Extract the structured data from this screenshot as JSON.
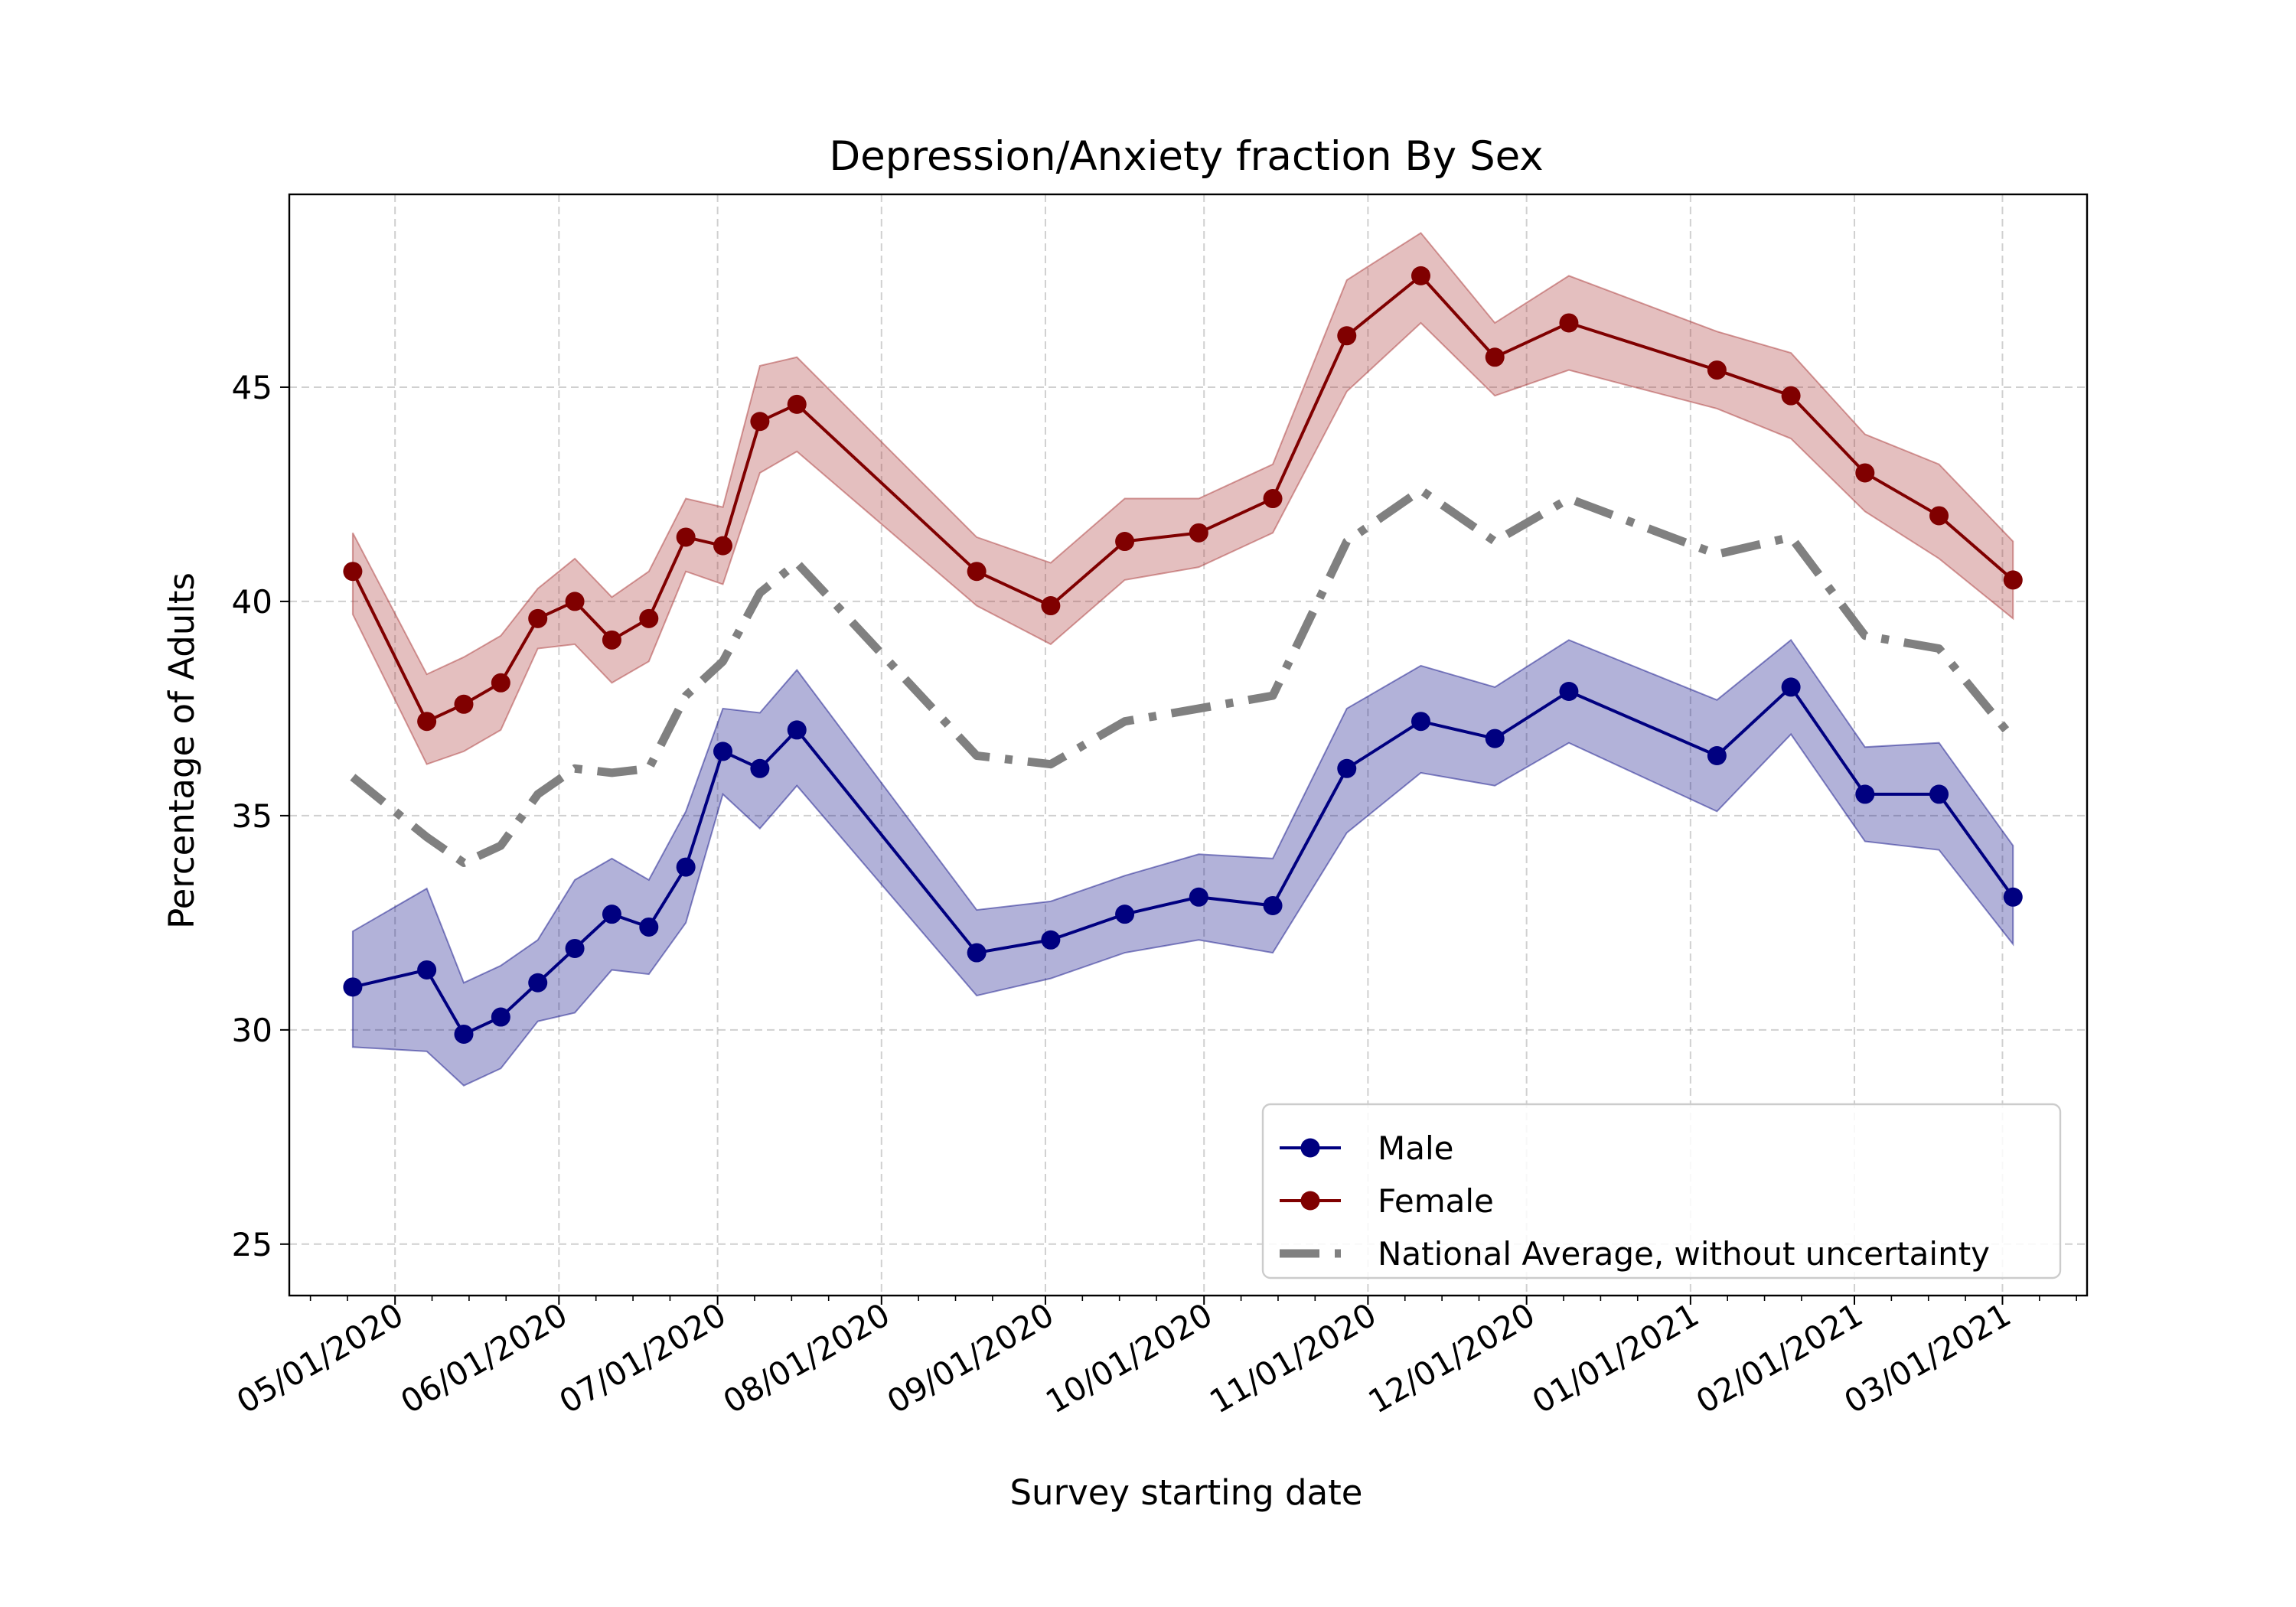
{
  "chart_data": {
    "type": "line",
    "title": "Depression/Anxiety fraction By Sex",
    "xlabel": "Survey starting date",
    "ylabel": "Percentage of Adults",
    "x_type": "date",
    "xlim": [
      "2020-04-11",
      "2021-03-17"
    ],
    "ylim": [
      23.8,
      49.5
    ],
    "yticks": [
      25,
      30,
      35,
      40,
      45
    ],
    "xticks": [
      {
        "date": "2020-05-01",
        "label": "05/01/2020"
      },
      {
        "date": "2020-06-01",
        "label": "06/01/2020"
      },
      {
        "date": "2020-07-01",
        "label": "07/01/2020"
      },
      {
        "date": "2020-08-01",
        "label": "08/01/2020"
      },
      {
        "date": "2020-09-01",
        "label": "09/01/2020"
      },
      {
        "date": "2020-10-01",
        "label": "10/01/2020"
      },
      {
        "date": "2020-11-01",
        "label": "11/01/2020"
      },
      {
        "date": "2020-12-01",
        "label": "12/01/2020"
      },
      {
        "date": "2021-01-01",
        "label": "01/01/2021"
      },
      {
        "date": "2021-02-01",
        "label": "02/01/2021"
      },
      {
        "date": "2021-03-01",
        "label": "03/01/2021"
      }
    ],
    "minor_tick_days": [
      1,
      8,
      15,
      22
    ],
    "grid": true,
    "legend_position": "bottom-right",
    "x": [
      "2020-04-23",
      "2020-05-07",
      "2020-05-14",
      "2020-05-21",
      "2020-05-28",
      "2020-06-04",
      "2020-06-11",
      "2020-06-18",
      "2020-06-25",
      "2020-07-02",
      "2020-07-09",
      "2020-07-16",
      "2020-07-21",
      "2020-08-19",
      "2020-09-02",
      "2020-09-16",
      "2020-09-30",
      "2020-10-14",
      "2020-10-28",
      "2020-11-11",
      "2020-11-25",
      "2020-12-09",
      "2021-01-06",
      "2021-01-20",
      "2021-02-03",
      "2021-02-17",
      "2021-03-03"
    ],
    "series": [
      {
        "name": "Male",
        "color": "#000080",
        "band_color": "#000080",
        "values": [
          31.0,
          31.4,
          29.9,
          30.3,
          31.1,
          31.9,
          32.7,
          32.4,
          33.8,
          36.5,
          36.1,
          37.0,
          null,
          31.8,
          32.1,
          32.7,
          33.1,
          32.9,
          36.1,
          37.2,
          36.8,
          37.9,
          36.4,
          38.0,
          35.5,
          35.5,
          33.1
        ],
        "x_index_override": [
          0,
          1,
          2,
          3,
          4,
          5,
          6,
          7,
          8,
          9,
          10,
          11,
          null,
          13,
          14,
          15,
          16,
          17,
          18,
          19,
          20,
          21,
          22,
          23,
          24,
          25,
          26
        ],
        "lower": [
          29.6,
          29.5,
          28.7,
          29.1,
          30.2,
          30.4,
          31.4,
          31.3,
          32.5,
          35.5,
          34.7,
          35.7,
          null,
          30.8,
          31.2,
          31.8,
          32.1,
          31.8,
          34.6,
          36.0,
          35.7,
          36.7,
          35.1,
          36.9,
          34.4,
          34.2,
          32.0
        ],
        "upper": [
          32.3,
          33.3,
          31.1,
          31.5,
          32.1,
          33.5,
          34.0,
          33.5,
          35.1,
          37.5,
          37.4,
          38.4,
          null,
          32.8,
          33.0,
          33.6,
          34.1,
          34.0,
          37.5,
          38.5,
          38.0,
          39.1,
          37.7,
          39.1,
          36.6,
          36.7,
          34.3
        ]
      },
      {
        "name": "Female",
        "color": "#800000",
        "band_color": "#a52a2a",
        "values": [
          40.7,
          37.2,
          37.6,
          38.1,
          39.6,
          40.0,
          39.1,
          39.6,
          41.5,
          41.3,
          44.2,
          44.6,
          null,
          40.7,
          39.9,
          41.4,
          41.6,
          42.4,
          46.2,
          47.6,
          45.7,
          46.5,
          45.4,
          44.8,
          43.0,
          42.0,
          40.5
        ],
        "lower": [
          39.7,
          36.2,
          36.5,
          37.0,
          38.9,
          39.0,
          38.1,
          38.6,
          40.7,
          40.4,
          43.0,
          43.5,
          null,
          39.9,
          39.0,
          40.5,
          40.8,
          41.6,
          44.9,
          46.5,
          44.8,
          45.4,
          44.5,
          43.8,
          42.1,
          41.0,
          39.6
        ],
        "upper": [
          41.6,
          38.3,
          38.7,
          39.2,
          40.3,
          41.0,
          40.1,
          40.7,
          42.4,
          42.2,
          45.5,
          45.7,
          null,
          41.5,
          40.9,
          42.4,
          42.4,
          43.2,
          47.5,
          48.6,
          46.5,
          47.6,
          46.3,
          45.8,
          43.9,
          43.2,
          41.4
        ]
      },
      {
        "name": "National Average, without uncertainty",
        "color": "#808080",
        "dash": true,
        "values": [
          35.9,
          34.5,
          33.9,
          34.3,
          35.5,
          36.1,
          36.0,
          36.1,
          37.8,
          38.6,
          40.2,
          40.9,
          null,
          36.4,
          36.2,
          37.2,
          37.5,
          37.8,
          41.4,
          42.6,
          41.4,
          42.4,
          41.1,
          41.5,
          39.2,
          38.9,
          36.8
        ]
      }
    ]
  }
}
